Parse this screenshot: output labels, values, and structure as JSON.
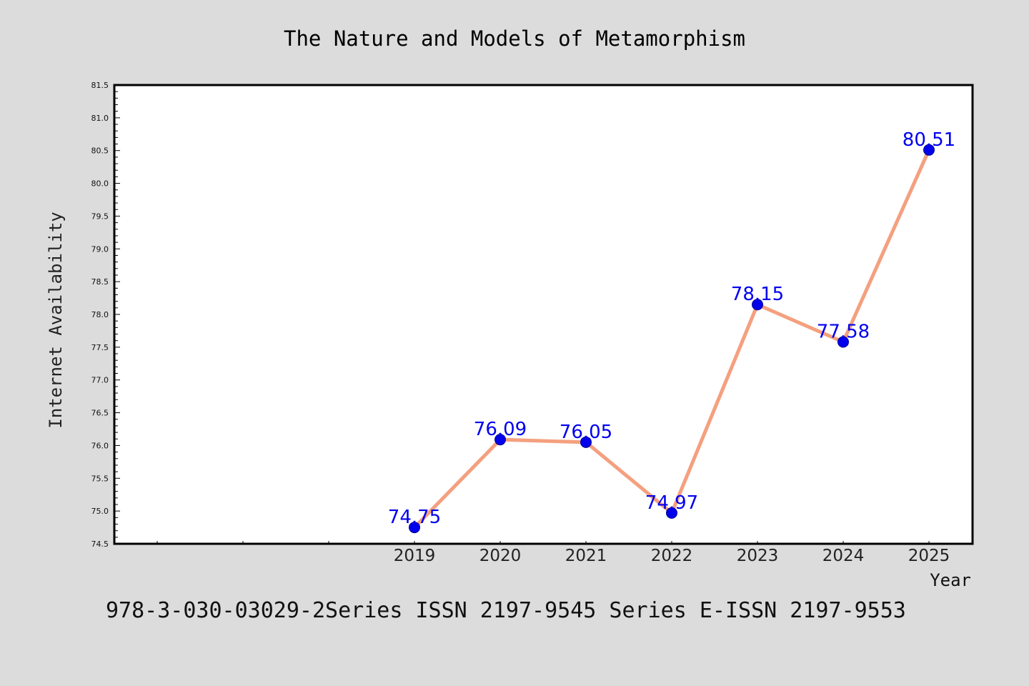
{
  "chart_data": {
    "type": "line",
    "title": "The Nature and Models of Metamorphism",
    "xlabel": "Year",
    "ylabel": "Internet Availability",
    "footer": "978-3-030-03029-2Series ISSN 2197-9545 Series E-ISSN 2197-9553",
    "x_categories": [
      "2019",
      "2020",
      "2021",
      "2022",
      "2023",
      "2024",
      "2025"
    ],
    "x_empty_slots_before": 3,
    "values": [
      74.75,
      76.09,
      76.05,
      74.97,
      78.15,
      77.58,
      80.51
    ],
    "data_labels": [
      "74.75",
      "76.09",
      "76.05",
      "74.97",
      "78.15",
      "77.58",
      "80.51"
    ],
    "ylim": [
      74.5,
      81.5
    ],
    "y_ticks": [
      "74.5",
      "75.0",
      "75.5",
      "76.0",
      "76.5",
      "77.0",
      "77.5",
      "78.0",
      "78.5",
      "79.0",
      "79.5",
      "80.0",
      "80.5",
      "81.0",
      "81.5"
    ],
    "y_minor_step": 0.1,
    "grid": false,
    "legend": "none",
    "colors": {
      "background": "#dcdcdc",
      "plot_background": "#ffffff",
      "line": "#f4a07f",
      "marker": "#0000ee",
      "data_label": "#0000ee",
      "axis": "#000000"
    }
  }
}
